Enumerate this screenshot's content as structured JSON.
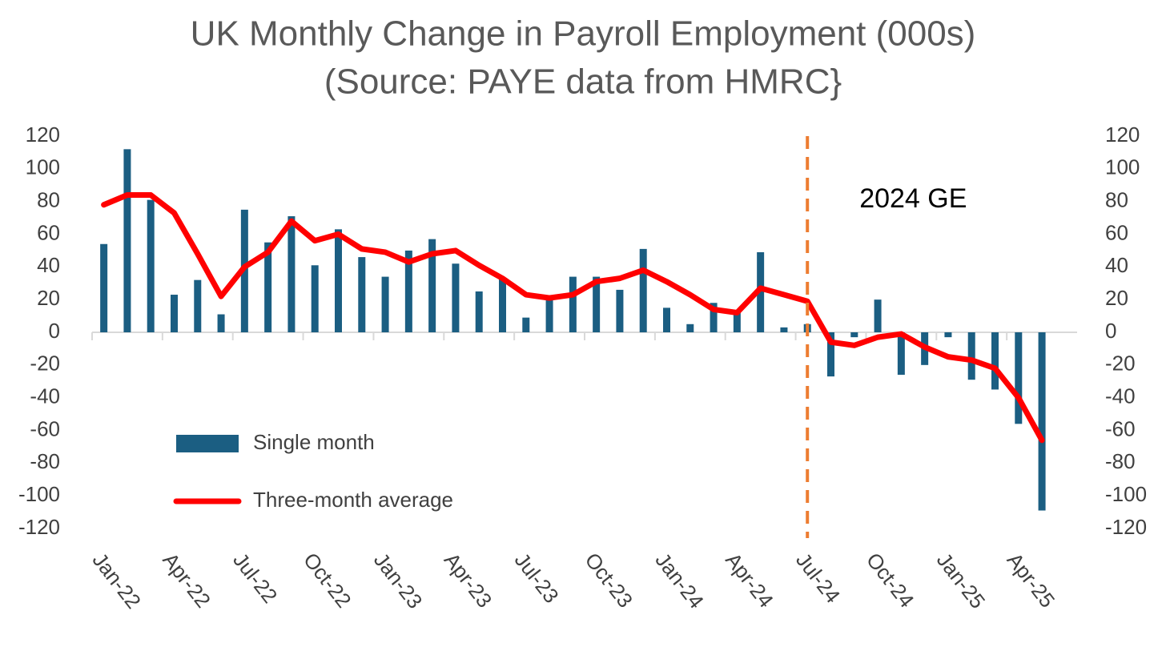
{
  "chart_data": {
    "type": "bar",
    "title": "UK Monthly Change in Payroll Employment (000s)",
    "subtitle": "(Source: PAYE data from HMRC}",
    "categories": [
      "Jan-22",
      null,
      null,
      "Apr-22",
      null,
      null,
      "Jul-22",
      null,
      null,
      "Oct-22",
      null,
      null,
      "Jan-23",
      null,
      null,
      "Apr-23",
      null,
      null,
      "Jul-23",
      null,
      null,
      "Oct-23",
      null,
      null,
      "Jan-24",
      null,
      null,
      "Apr-24",
      null,
      null,
      "Jul-24",
      null,
      null,
      "Oct-24",
      null,
      null,
      "Jan-25",
      null,
      null,
      "Apr-25",
      null,
      null
    ],
    "series": [
      {
        "name": "Single month",
        "type": "bar",
        "color": "#1b5e82",
        "values": [
          54,
          112,
          81,
          23,
          32,
          11,
          75,
          55,
          71,
          41,
          63,
          46,
          34,
          50,
          57,
          42,
          25,
          33,
          9,
          21,
          34,
          34,
          26,
          51,
          15,
          5,
          18,
          13,
          49,
          3,
          5,
          -27,
          -3,
          20,
          -26,
          -20,
          -3,
          -29,
          -35,
          -56,
          -109,
          null
        ]
      },
      {
        "name": "Three-month average",
        "type": "line",
        "color": "#ff0000",
        "values": [
          78,
          84,
          84,
          73,
          48,
          22,
          40,
          49,
          68,
          56,
          60,
          51,
          49,
          43,
          48,
          50,
          41,
          33,
          23,
          21,
          23,
          31,
          33,
          38,
          31,
          23,
          14,
          12,
          27,
          23,
          19,
          -6,
          -8,
          -3,
          -1,
          -9,
          -15,
          -17,
          -22,
          -40,
          -66,
          null
        ]
      }
    ],
    "ylim": [
      -120,
      120
    ],
    "yticks": [
      -120,
      -100,
      -80,
      -60,
      -40,
      -20,
      0,
      20,
      40,
      60,
      80,
      100,
      120
    ],
    "y2lim": [
      -120,
      120
    ],
    "y2ticks": [
      -120,
      -100,
      -80,
      -60,
      -40,
      -20,
      0,
      20,
      40,
      60,
      80,
      100,
      120
    ],
    "grid": false,
    "legend": "lower left",
    "annotations": [
      {
        "text": "2024 GE",
        "x": "Jul-24",
        "color": "#ed7d31"
      }
    ]
  }
}
